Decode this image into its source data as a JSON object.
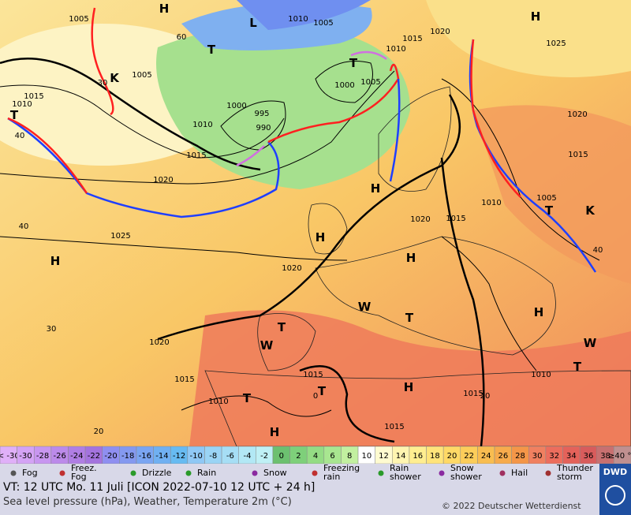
{
  "map": {
    "isobar_labels": [
      "1005",
      "1010",
      "1005",
      "1010",
      "1015",
      "1020",
      "1025",
      "1005",
      "1000",
      "1005",
      "1000",
      "995",
      "990",
      "1015",
      "1010",
      "1010",
      "1015",
      "1020",
      "1020",
      "1015",
      "1010",
      "1005",
      "1020",
      "1015",
      "1025",
      "1020",
      "1020",
      "1015",
      "1015",
      "1010",
      "1015",
      "1015",
      "1010"
    ],
    "isotherm_labels": [
      "60",
      "30",
      "40",
      "40",
      "30",
      "20",
      "0",
      "20",
      "40"
    ],
    "symbols": [
      "H",
      "L",
      "H",
      "H",
      "H",
      "H",
      "H",
      "H",
      "H",
      "H",
      "T",
      "T",
      "T",
      "T",
      "T",
      "T",
      "T",
      "T",
      "T",
      "K",
      "K",
      "W",
      "W",
      "W"
    ]
  },
  "legend": {
    "temperature_scale": [
      {
        "label": "< -30",
        "color": "#e0b0f8"
      },
      {
        "label": "-30",
        "color": "#d4a3f5"
      },
      {
        "label": "-28",
        "color": "#c896f0"
      },
      {
        "label": "-26",
        "color": "#bc8aea"
      },
      {
        "label": "-24",
        "color": "#b07ee4"
      },
      {
        "label": "-22",
        "color": "#a473de"
      },
      {
        "label": "-20",
        "color": "#8f8ff0"
      },
      {
        "label": "-18",
        "color": "#8499f0"
      },
      {
        "label": "-16",
        "color": "#7aa5f2"
      },
      {
        "label": "-14",
        "color": "#70b0f2"
      },
      {
        "label": "-12",
        "color": "#67bbf2"
      },
      {
        "label": "-10",
        "color": "#8fc8f5"
      },
      {
        "label": "-8",
        "color": "#9ad4f5"
      },
      {
        "label": "-6",
        "color": "#a6def5"
      },
      {
        "label": "-4",
        "color": "#b2e8f5"
      },
      {
        "label": "-2",
        "color": "#bff0f5"
      },
      {
        "label": "0",
        "color": "#6cc070"
      },
      {
        "label": "2",
        "color": "#7ed07a"
      },
      {
        "label": "4",
        "color": "#94dc84"
      },
      {
        "label": "6",
        "color": "#a8e690"
      },
      {
        "label": "8",
        "color": "#c2f0a0"
      },
      {
        "label": "10",
        "color": "#ffffff"
      },
      {
        "label": "12",
        "color": "#fffbd0"
      },
      {
        "label": "14",
        "color": "#fff5b0"
      },
      {
        "label": "16",
        "color": "#ffee90"
      },
      {
        "label": "18",
        "color": "#ffe47a"
      },
      {
        "label": "20",
        "color": "#ffd966"
      },
      {
        "label": "22",
        "color": "#fccd5a"
      },
      {
        "label": "24",
        "color": "#f9bd50"
      },
      {
        "label": "26",
        "color": "#f7ab4c"
      },
      {
        "label": "28",
        "color": "#f49648"
      },
      {
        "label": "30",
        "color": "#f08060"
      },
      {
        "label": "32",
        "color": "#ec6d5d"
      },
      {
        "label": "34",
        "color": "#e4625a"
      },
      {
        "label": "36",
        "color": "#d85c5c"
      },
      {
        "label": "38",
        "color": "#c87070"
      },
      {
        "label": "≥40 °C",
        "color": "#c09090"
      }
    ],
    "weather": [
      [
        "Fog"
      ],
      [
        "Freez.",
        "Fog"
      ],
      [
        "Drizzle"
      ],
      [
        "Rain"
      ],
      [
        "Snow"
      ],
      [
        "Freezing",
        "rain"
      ],
      [
        "Rain",
        "shower"
      ],
      [
        "Snow",
        "shower"
      ],
      [
        "Hail"
      ],
      [
        "Thunder",
        "storm"
      ]
    ]
  },
  "footer": {
    "valid_time": "VT: 12 UTC Mo.  11 Juli [ICON 2022-07-10  12 UTC + 24 h]",
    "description": "Sea level pressure (hPa), Weather, Temperature 2m (°C)",
    "copyright": "© 2022 Deutscher Wetterdienst",
    "logo": "DWD"
  }
}
